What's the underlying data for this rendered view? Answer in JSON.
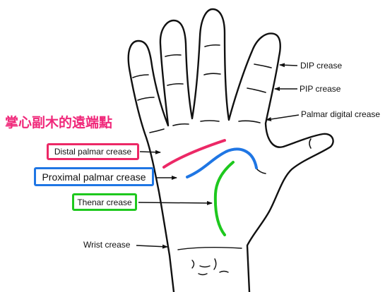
{
  "title": "掌心副木的遠端點",
  "labels": {
    "distal_palmar": "Distal palmar crease",
    "proximal_palmar": "Proximal palmar crease",
    "thenar": "Thenar crease",
    "wrist": "Wrist crease",
    "dip": "DIP crease",
    "pip": "PIP crease",
    "palmar_digital": "Palmar digital crease"
  },
  "colors": {
    "title": "#f0287a",
    "distal_palmar": "#ec2866",
    "proximal_palmar": "#1f76e4",
    "thenar": "#1ec81e",
    "outline": "#111111"
  }
}
